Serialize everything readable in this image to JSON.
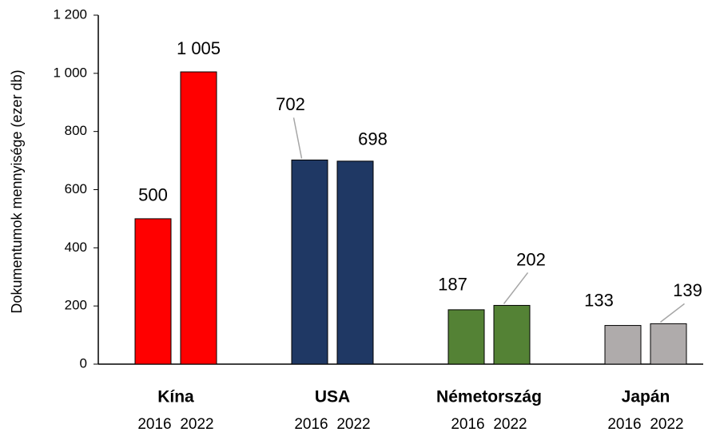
{
  "chart_data": {
    "type": "bar",
    "y_axis_label": "Dokumentumok mennyisége (ezer db)",
    "categories": [
      "Kína",
      "USA",
      "Németország",
      "Japán"
    ],
    "colors": [
      "#ff0000",
      "#1f3864",
      "#548235",
      "#afabab"
    ],
    "series": [
      {
        "name": "2016",
        "values": [
          500,
          702,
          187,
          133
        ],
        "value_labels": [
          "500",
          "702",
          "187",
          "133"
        ]
      },
      {
        "name": "2022",
        "values": [
          1005,
          698,
          202,
          139
        ],
        "value_labels": [
          "1 005",
          "698",
          "202",
          "139"
        ]
      }
    ],
    "ylim": [
      0,
      1200
    ],
    "yticks": [
      0,
      200,
      400,
      600,
      800,
      {
        "value": 1000,
        "label": "1 000"
      },
      {
        "value": 1200,
        "label": "1 200"
      }
    ],
    "grid": false
  }
}
